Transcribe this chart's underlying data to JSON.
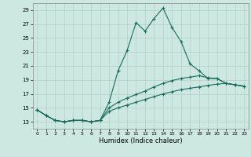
{
  "title": "",
  "xlabel": "Humidex (Indice chaleur)",
  "bg_color": "#cce8e0",
  "grid_color": "#b0d0c8",
  "line_color": "#1a6b5a",
  "xlim": [
    -0.5,
    23.5
  ],
  "ylim": [
    12,
    30
  ],
  "yticks": [
    13,
    15,
    17,
    19,
    21,
    23,
    25,
    27,
    29
  ],
  "xticks": [
    0,
    1,
    2,
    3,
    4,
    5,
    6,
    7,
    8,
    9,
    10,
    11,
    12,
    13,
    14,
    15,
    16,
    17,
    18,
    19,
    20,
    21,
    22,
    23
  ],
  "series1": [
    [
      0,
      14.7
    ],
    [
      1,
      13.9
    ],
    [
      2,
      13.2
    ],
    [
      3,
      13.0
    ],
    [
      4,
      13.2
    ],
    [
      5,
      13.2
    ],
    [
      6,
      13.0
    ],
    [
      7,
      13.2
    ],
    [
      8,
      15.8
    ],
    [
      9,
      20.3
    ],
    [
      10,
      23.2
    ],
    [
      11,
      27.2
    ],
    [
      12,
      26.0
    ],
    [
      13,
      27.8
    ],
    [
      14,
      29.3
    ],
    [
      15,
      26.5
    ],
    [
      16,
      24.5
    ],
    [
      17,
      21.3
    ],
    [
      18,
      20.3
    ],
    [
      19,
      19.2
    ],
    [
      20,
      19.2
    ],
    [
      21,
      18.5
    ],
    [
      22,
      18.3
    ],
    [
      23,
      18.1
    ]
  ],
  "series2": [
    [
      0,
      14.7
    ],
    [
      1,
      13.9
    ],
    [
      2,
      13.2
    ],
    [
      3,
      13.0
    ],
    [
      4,
      13.2
    ],
    [
      5,
      13.2
    ],
    [
      6,
      13.0
    ],
    [
      7,
      13.2
    ],
    [
      8,
      15.0
    ],
    [
      9,
      15.8
    ],
    [
      10,
      16.4
    ],
    [
      11,
      16.9
    ],
    [
      12,
      17.4
    ],
    [
      13,
      18.0
    ],
    [
      14,
      18.5
    ],
    [
      15,
      18.9
    ],
    [
      16,
      19.2
    ],
    [
      17,
      19.4
    ],
    [
      18,
      19.6
    ],
    [
      19,
      19.3
    ],
    [
      20,
      19.2
    ],
    [
      21,
      18.5
    ],
    [
      22,
      18.3
    ],
    [
      23,
      18.1
    ]
  ],
  "series3": [
    [
      0,
      14.7
    ],
    [
      1,
      13.9
    ],
    [
      2,
      13.2
    ],
    [
      3,
      13.0
    ],
    [
      4,
      13.2
    ],
    [
      5,
      13.2
    ],
    [
      6,
      13.0
    ],
    [
      7,
      13.2
    ],
    [
      8,
      14.5
    ],
    [
      9,
      15.0
    ],
    [
      10,
      15.4
    ],
    [
      11,
      15.8
    ],
    [
      12,
      16.2
    ],
    [
      13,
      16.6
    ],
    [
      14,
      17.0
    ],
    [
      15,
      17.3
    ],
    [
      16,
      17.6
    ],
    [
      17,
      17.8
    ],
    [
      18,
      18.0
    ],
    [
      19,
      18.2
    ],
    [
      20,
      18.4
    ],
    [
      21,
      18.5
    ],
    [
      22,
      18.3
    ],
    [
      23,
      18.1
    ]
  ]
}
